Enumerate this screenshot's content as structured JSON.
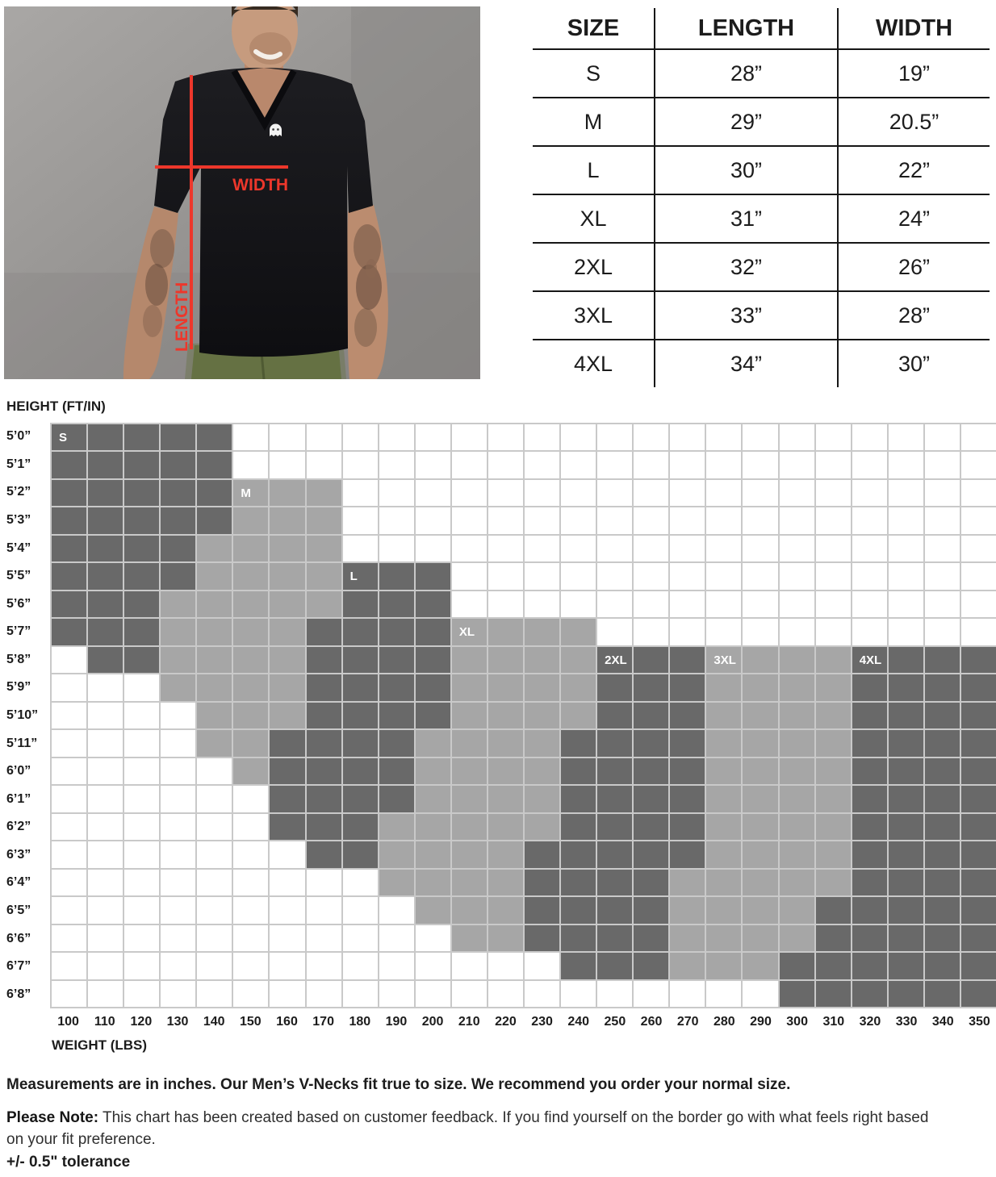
{
  "photo": {
    "width_label": "WIDTH",
    "length_label": "LENGTH",
    "accent_red": "#ed372b",
    "description": "man-in-black-vneck-tshirt-with-measurement-lines"
  },
  "size_table": {
    "headers": [
      "SIZE",
      "LENGTH",
      "WIDTH"
    ],
    "rows": [
      [
        "S",
        "28”",
        "19”"
      ],
      [
        "M",
        "29”",
        "20.5”"
      ],
      [
        "L",
        "30”",
        "22”"
      ],
      [
        "XL",
        "31”",
        "24”"
      ],
      [
        "2XL",
        "32”",
        "26”"
      ],
      [
        "3XL",
        "33”",
        "28”"
      ],
      [
        "4XL",
        "34”",
        "30”"
      ]
    ]
  },
  "chart_data": {
    "type": "heatmap",
    "ylabel": "HEIGHT (FT/IN)",
    "xlabel": "WEIGHT (LBS)",
    "y_labels": [
      "5’0”",
      "5’1”",
      "5’2”",
      "5’3”",
      "5’4”",
      "5’5”",
      "5’6”",
      "5’7”",
      "5’8”",
      "5’9”",
      "5’10”",
      "5’11”",
      "6’0”",
      "6’1”",
      "6’2”",
      "6’3”",
      "6’4”",
      "6’5”",
      "6’6”",
      "6’7”",
      "6’8”"
    ],
    "x_labels": [
      "100",
      "110",
      "120",
      "130",
      "140",
      "150",
      "160",
      "170",
      "180",
      "190",
      "200",
      "210",
      "220",
      "230",
      "240",
      "250",
      "260",
      "270",
      "280",
      "290",
      "300",
      "310",
      "320",
      "330",
      "340",
      "350"
    ],
    "cell_encoding": {
      "0": "empty",
      "1": "light",
      "2": "dark"
    },
    "colors": {
      "dark": "#696969",
      "light": "#a6a6a6",
      "empty": "#ffffff",
      "gridline": "#c9c9c9"
    },
    "zones": [
      {
        "label": "S",
        "shade": "dark"
      },
      {
        "label": "M",
        "shade": "light"
      },
      {
        "label": "L",
        "shade": "dark"
      },
      {
        "label": "XL",
        "shade": "light"
      },
      {
        "label": "2XL",
        "shade": "dark"
      },
      {
        "label": "3XL",
        "shade": "light"
      },
      {
        "label": "4XL",
        "shade": "dark"
      }
    ],
    "zone_labels": {
      "0,0": "S",
      "2,5": "M",
      "5,8": "L",
      "7,11": "XL",
      "8,15": "2XL",
      "8,18": "3XL",
      "8,22": "4XL"
    },
    "rows": [
      "22222000000000000000000000",
      "22222000000000000000000000",
      "22222111000000000000000000",
      "22222111000000000000000000",
      "22221111000000000000000000",
      "22221111222000000000000000",
      "22211111222000000000000000",
      "22211112222111100000000000",
      "02211112222111122211112222",
      "00011112222111122211112222",
      "00001112222111122211112222",
      "00001122221111222211112222",
      "00000122221111222211112222",
      "00000022221111222211112222",
      "00000022211111222211112222",
      "00000002211112222211112222",
      "00000000011112222111112222",
      "00000000001112222111122222",
      "00000000000112222111122222",
      "00000000000000222111222222",
      "00000000000000000000222222"
    ]
  },
  "notes": {
    "line1": "Measurements are in inches. Our Men’s V-Necks fit true to size. We recommend you order your normal size.",
    "note_label": "Please Note:",
    "note_text": " This chart has been created based on customer feedback. If you find yourself on the border go with what feels right based on your fit preference.",
    "tolerance": "+/- 0.5\" tolerance"
  }
}
